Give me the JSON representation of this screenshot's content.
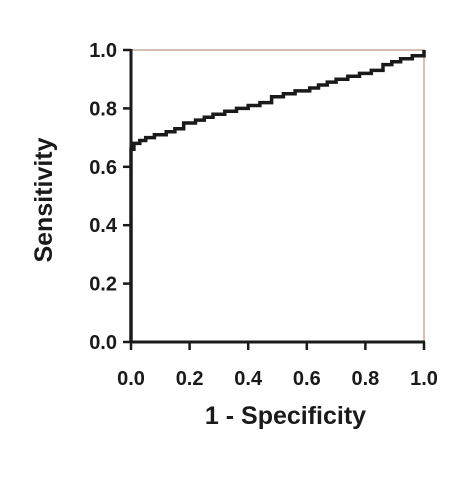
{
  "chart_data": {
    "type": "line",
    "title": "",
    "xlabel": "1 - Specificity",
    "ylabel": "Sensitivity",
    "xlim": [
      0.0,
      1.0
    ],
    "ylim": [
      0.0,
      1.0
    ],
    "xticks": [
      "0.0",
      "0.2",
      "0.4",
      "0.6",
      "0.8",
      "1.0"
    ],
    "yticks": [
      "0.0",
      "0.2",
      "0.4",
      "0.6",
      "0.8",
      "1.0"
    ],
    "grid": false,
    "legend": "none",
    "line_color": "#1a1a1a",
    "frame_color": "#c9a89a",
    "series": [
      {
        "x": [
          0.0,
          0.0,
          0.0,
          0.0,
          0.0,
          0.01,
          0.01,
          0.03,
          0.03,
          0.05,
          0.05,
          0.08,
          0.08,
          0.12,
          0.12,
          0.15,
          0.15,
          0.18,
          0.18,
          0.22,
          0.22,
          0.25,
          0.25,
          0.28,
          0.28,
          0.32,
          0.32,
          0.36,
          0.36,
          0.4,
          0.4,
          0.44,
          0.44,
          0.48,
          0.48,
          0.52,
          0.52,
          0.56,
          0.56,
          0.61,
          0.61,
          0.64,
          0.64,
          0.67,
          0.67,
          0.7,
          0.7,
          0.74,
          0.74,
          0.78,
          0.78,
          0.82,
          0.82,
          0.86,
          0.86,
          0.89,
          0.89,
          0.92,
          0.92,
          0.96,
          0.96,
          1.0,
          1.0
        ],
        "y": [
          0.0,
          0.35,
          0.58,
          0.63,
          0.66,
          0.66,
          0.68,
          0.68,
          0.69,
          0.69,
          0.7,
          0.7,
          0.71,
          0.71,
          0.72,
          0.72,
          0.73,
          0.73,
          0.75,
          0.75,
          0.76,
          0.76,
          0.77,
          0.77,
          0.78,
          0.78,
          0.79,
          0.79,
          0.8,
          0.8,
          0.81,
          0.81,
          0.82,
          0.82,
          0.84,
          0.84,
          0.85,
          0.85,
          0.86,
          0.86,
          0.87,
          0.87,
          0.88,
          0.88,
          0.89,
          0.89,
          0.9,
          0.9,
          0.91,
          0.91,
          0.92,
          0.92,
          0.93,
          0.93,
          0.95,
          0.95,
          0.96,
          0.96,
          0.97,
          0.97,
          0.98,
          0.98,
          1.0
        ]
      }
    ]
  }
}
